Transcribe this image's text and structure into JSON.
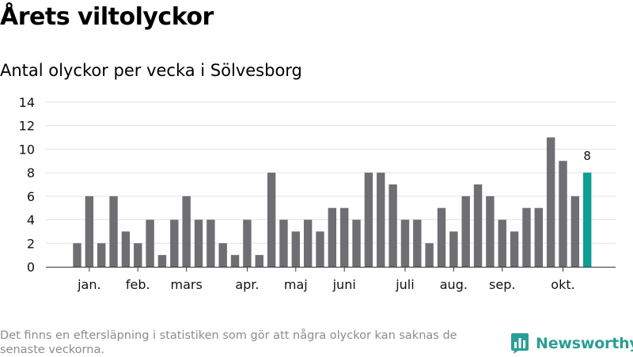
{
  "title": "Årets viltolyckor",
  "subtitle": "Antal olyckor per vecka i Sölvesborg",
  "footnote": "Det finns en eftersläpning i statistiken som gör att några olyckor kan saknas de senaste veckorna.",
  "brand": {
    "name": "Newsworthy",
    "icon": "newsworthy-logo-icon",
    "color": "#2b9e95"
  },
  "colors": {
    "bar": "#6e6e73",
    "highlight": "#0d9e94",
    "grid": "#e2e2e2",
    "axis": "#333333"
  },
  "chart_data": {
    "type": "bar",
    "x_unit": "week",
    "weeks": [
      1,
      2,
      3,
      4,
      5,
      6,
      7,
      8,
      9,
      10,
      11,
      12,
      13,
      14,
      15,
      16,
      17,
      18,
      19,
      20,
      21,
      22,
      23,
      24,
      25,
      26,
      27,
      28,
      29,
      30,
      31,
      32,
      33,
      34,
      35,
      36,
      37,
      38,
      39,
      40,
      41,
      42,
      43
    ],
    "values": [
      2,
      6,
      2,
      6,
      3,
      2,
      4,
      1,
      4,
      6,
      4,
      4,
      2,
      1,
      4,
      1,
      8,
      4,
      3,
      4,
      3,
      5,
      5,
      4,
      8,
      8,
      7,
      4,
      4,
      2,
      5,
      3,
      6,
      7,
      6,
      4,
      3,
      5,
      5,
      11,
      9,
      6,
      8
    ],
    "highlight_index": 42,
    "highlight_label": "8",
    "yticks": [
      0,
      2,
      4,
      6,
      8,
      10,
      12,
      14
    ],
    "ylim": [
      0,
      14
    ],
    "month_ticks": [
      {
        "label": "jan.",
        "week": 2
      },
      {
        "label": "feb.",
        "week": 6
      },
      {
        "label": "mars",
        "week": 10
      },
      {
        "label": "apr.",
        "week": 15
      },
      {
        "label": "maj",
        "week": 19
      },
      {
        "label": "juni",
        "week": 23
      },
      {
        "label": "juli",
        "week": 28
      },
      {
        "label": "aug.",
        "week": 32
      },
      {
        "label": "sep.",
        "week": 36
      },
      {
        "label": "okt.",
        "week": 41
      }
    ],
    "grid": true,
    "legend": "none"
  }
}
